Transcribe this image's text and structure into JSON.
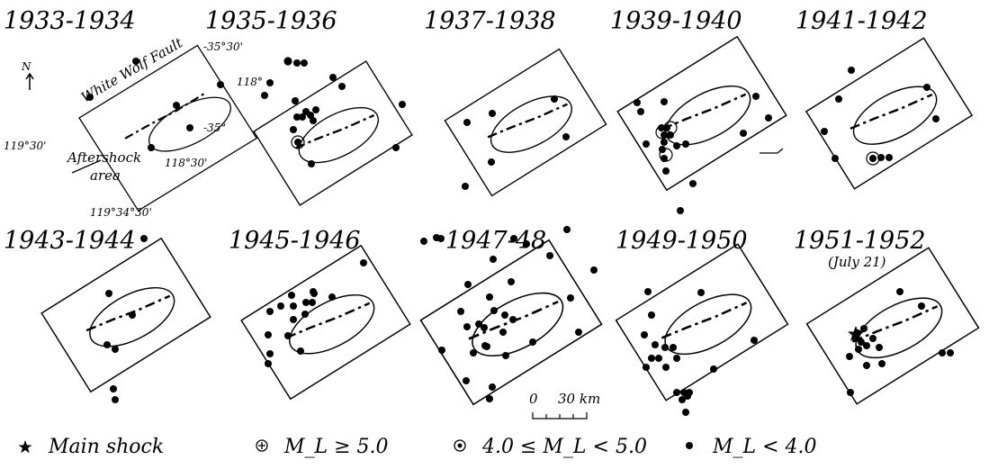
{
  "panels": [
    {
      "id": "p1933",
      "title": "1933-1934",
      "subtitle": ""
    },
    {
      "id": "p1935",
      "title": "1935-1936",
      "subtitle": ""
    },
    {
      "id": "p1937",
      "title": "1937-1938",
      "subtitle": ""
    },
    {
      "id": "p1939",
      "title": "1939-1940",
      "subtitle": ""
    },
    {
      "id": "p1941",
      "title": "1941-1942",
      "subtitle": ""
    },
    {
      "id": "p1943",
      "title": "1943-1944",
      "subtitle": ""
    },
    {
      "id": "p1945",
      "title": "1945-1946",
      "subtitle": ""
    },
    {
      "id": "p1947",
      "title": "1947-48",
      "subtitle": ""
    },
    {
      "id": "p1949",
      "title": "1949-1950",
      "subtitle": ""
    },
    {
      "id": "p1951",
      "title": "1951-1952",
      "subtitle": "(July 21)"
    }
  ],
  "map_labels": {
    "north": "N",
    "fault": "White Wolf Fault",
    "aftershock": "Aftershock",
    "area": "area",
    "coords": [
      "-35°30'",
      "118°",
      "-35°",
      "118°30'",
      "119°30'",
      "119°34°30'"
    ]
  },
  "scale": {
    "zero": "0",
    "label": "30 km"
  },
  "legend": [
    {
      "symbol": "star",
      "label": "Main shock"
    },
    {
      "symbol": "circle-plus",
      "label": "M_L ≥ 5.0"
    },
    {
      "symbol": "circle-dot",
      "label": "4.0 ≤ M_L < 5.0"
    },
    {
      "symbol": "dot",
      "label": "M_L < 4.0"
    }
  ],
  "colors": {
    "ink": "#000000",
    "paper": "#ffffff"
  }
}
